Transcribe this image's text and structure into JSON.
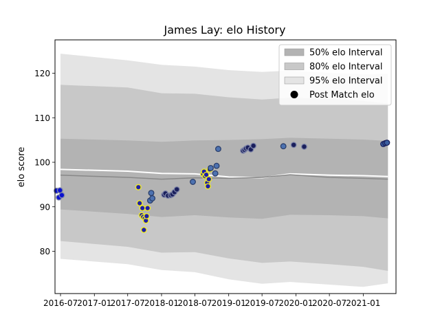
{
  "chart_data": {
    "type": "scatter",
    "title": "James Lay: elo History",
    "xlabel": "",
    "ylabel": "elo score",
    "xlim": [
      "2016-06-01",
      "2021-06-28"
    ],
    "ylim": [
      70.5,
      127.5
    ],
    "x_ticks": [
      "2016-07",
      "2017-01",
      "2017-07",
      "2018-01",
      "2018-07",
      "2019-01",
      "2019-07",
      "2020-01",
      "2020-07",
      "2021-01"
    ],
    "y_ticks": [
      80,
      90,
      100,
      110,
      120
    ],
    "grid": false,
    "legend_position": "top-right",
    "legend": [
      {
        "label": "50% elo Interval",
        "color": "#b3b3b3"
      },
      {
        "label": "80% elo Interval",
        "color": "#c8c8c8"
      },
      {
        "label": "95% elo Interval",
        "color": "#e4e4e4"
      },
      {
        "label": "Post Match elo",
        "color": "#000000"
      }
    ],
    "intervals": {
      "x": [
        "2016-07-01",
        "2017-07-01",
        "2018-01-01",
        "2018-07-01",
        "2019-01-01",
        "2019-07-01",
        "2019-12-01",
        "2020-07-01",
        "2021-01-01",
        "2021-05-15"
      ],
      "mean": [
        97.1,
        96.6,
        96.2,
        96.5,
        96.4,
        96.6,
        97.2,
        96.6,
        96.4,
        96.2
      ],
      "p25": [
        89.4,
        88.4,
        87.7,
        88.1,
        87.6,
        87.3,
        88.2,
        88.1,
        87.9,
        87.4
      ],
      "p75": [
        105.3,
        104.9,
        104.6,
        104.9,
        105.0,
        105.2,
        105.5,
        105.3,
        105.1,
        104.8
      ],
      "p10": [
        82.3,
        81.0,
        79.7,
        79.8,
        78.4,
        77.4,
        77.7,
        77.1,
        76.5,
        75.6
      ],
      "p90": [
        117.4,
        116.8,
        115.5,
        115.4,
        114.6,
        114.1,
        114.5,
        114.3,
        113.8,
        113.2
      ],
      "p2_5": [
        78.3,
        77.1,
        75.8,
        75.3,
        73.7,
        72.7,
        73.1,
        72.5,
        72.0,
        72.8
      ],
      "p97_5": [
        124.4,
        122.9,
        121.9,
        121.5,
        120.7,
        120.3,
        120.6,
        120.1,
        119.8,
        119.9
      ]
    },
    "mean_line_color": "#888888",
    "upper_line": [
      98.4,
      98.0,
      97.5,
      97.4,
      96.7,
      96.5,
      97.4,
      97.1,
      97.0,
      96.8
    ],
    "series": [
      {
        "points": [
          {
            "x": "2016-06-10",
            "y": 93.6,
            "fill": "#0a10d0",
            "edge": "#7d84a8"
          },
          {
            "x": "2016-06-22",
            "y": 92.1,
            "fill": "#0a10d0",
            "edge": "#7d84a8"
          },
          {
            "x": "2016-06-28",
            "y": 93.7,
            "fill": "#0a10d0",
            "edge": "#7d84a8"
          },
          {
            "x": "2016-07-08",
            "y": 92.6,
            "fill": "#0a10d0",
            "edge": "#7d84a8"
          },
          {
            "x": "2017-08-28",
            "y": 94.4,
            "fill": "#1f1fa8",
            "edge": "#f6f11a"
          },
          {
            "x": "2017-09-04",
            "y": 90.8,
            "fill": "#1f1fa8",
            "edge": "#f6f11a"
          },
          {
            "x": "2017-09-15",
            "y": 88.1,
            "fill": "#1f1fa8",
            "edge": "#f6f11a"
          },
          {
            "x": "2017-09-19",
            "y": 89.7,
            "fill": "#1f1fa8",
            "edge": "#f6f11a"
          },
          {
            "x": "2017-09-23",
            "y": 87.7,
            "fill": "#1f1fa8",
            "edge": "#f6f11a"
          },
          {
            "x": "2017-09-27",
            "y": 84.8,
            "fill": "#1f1fa8",
            "edge": "#f6f11a"
          },
          {
            "x": "2017-10-02",
            "y": 87.4,
            "fill": "#1f1fa8",
            "edge": "#f6f11a"
          },
          {
            "x": "2017-10-08",
            "y": 86.9,
            "fill": "#1f1fa8",
            "edge": "#f6f11a"
          },
          {
            "x": "2017-10-12",
            "y": 87.9,
            "fill": "#1f1fa8",
            "edge": "#f6f11a"
          },
          {
            "x": "2017-10-17",
            "y": 89.7,
            "fill": "#1f1fa8",
            "edge": "#f6f11a"
          },
          {
            "x": "2017-10-31",
            "y": 91.4,
            "fill": "#4d72b0",
            "edge": "#2a3e6b"
          },
          {
            "x": "2017-11-06",
            "y": 93.1,
            "fill": "#4d72b0",
            "edge": "#2a3e6b"
          },
          {
            "x": "2017-11-12",
            "y": 91.9,
            "fill": "#4d72b0",
            "edge": "#2a3e6b"
          },
          {
            "x": "2018-01-15",
            "y": 92.7,
            "fill": "#1a1f5c",
            "edge": "#7d84a8"
          },
          {
            "x": "2018-01-22",
            "y": 93.0,
            "fill": "#1a1f5c",
            "edge": "#7d84a8"
          },
          {
            "x": "2018-02-05",
            "y": 92.5,
            "fill": "#1a1f5c",
            "edge": "#7d84a8"
          },
          {
            "x": "2018-02-20",
            "y": 92.6,
            "fill": "#1a1f5c",
            "edge": "#7d84a8"
          },
          {
            "x": "2018-03-01",
            "y": 92.8,
            "fill": "#1a1f5c",
            "edge": "#7d84a8"
          },
          {
            "x": "2018-03-12",
            "y": 93.3,
            "fill": "#1a1f5c",
            "edge": "#7d84a8"
          },
          {
            "x": "2018-03-25",
            "y": 93.9,
            "fill": "#1a1f5c",
            "edge": "#7d84a8"
          },
          {
            "x": "2018-06-20",
            "y": 95.6,
            "fill": "#4d72b0",
            "edge": "#2a3e6b"
          },
          {
            "x": "2018-08-15",
            "y": 97.4,
            "fill": "#1f1fa8",
            "edge": "#f6f11a"
          },
          {
            "x": "2018-08-20",
            "y": 97.9,
            "fill": "#1f1fa8",
            "edge": "#f6f11a"
          },
          {
            "x": "2018-08-25",
            "y": 96.9,
            "fill": "#1f1fa8",
            "edge": "#f6f11a"
          },
          {
            "x": "2018-09-01",
            "y": 97.2,
            "fill": "#1f1fa8",
            "edge": "#f6f11a"
          },
          {
            "x": "2018-09-06",
            "y": 95.4,
            "fill": "#1f1fa8",
            "edge": "#f6f11a"
          },
          {
            "x": "2018-09-10",
            "y": 94.6,
            "fill": "#1f1fa8",
            "edge": "#f6f11a"
          },
          {
            "x": "2018-09-15",
            "y": 96.2,
            "fill": "#1f1fa8",
            "edge": "#f6f11a"
          },
          {
            "x": "2018-09-20",
            "y": 98.4,
            "fill": "#1f1fa8",
            "edge": "#f6f11a"
          },
          {
            "x": "2018-09-25",
            "y": 98.7,
            "fill": "#4d72b0",
            "edge": "#2a3e6b"
          },
          {
            "x": "2018-10-20",
            "y": 97.5,
            "fill": "#4d72b0",
            "edge": "#2a3e6b"
          },
          {
            "x": "2018-10-27",
            "y": 99.2,
            "fill": "#4d72b0",
            "edge": "#2a3e6b"
          },
          {
            "x": "2018-11-05",
            "y": 103.0,
            "fill": "#4d72b0",
            "edge": "#2a3e6b"
          },
          {
            "x": "2019-03-20",
            "y": 102.6,
            "fill": "#1a1f5c",
            "edge": "#7d84a8"
          },
          {
            "x": "2019-03-28",
            "y": 102.8,
            "fill": "#1a1f5c",
            "edge": "#7d84a8"
          },
          {
            "x": "2019-04-05",
            "y": 103.1,
            "fill": "#1a1f5c",
            "edge": "#7d84a8"
          },
          {
            "x": "2019-04-15",
            "y": 103.3,
            "fill": "#1a1f5c",
            "edge": "#7d84a8"
          },
          {
            "x": "2019-05-01",
            "y": 102.9,
            "fill": "#1a1f5c",
            "edge": "#7d84a8"
          },
          {
            "x": "2019-05-15",
            "y": 103.7,
            "fill": "#1a1f5c",
            "edge": "#7d84a8"
          },
          {
            "x": "2019-10-25",
            "y": 103.6,
            "fill": "#4d72b0",
            "edge": "#2a3e6b"
          },
          {
            "x": "2019-12-20",
            "y": 103.9,
            "fill": "#1a1f5c",
            "edge": "#7d84a8"
          },
          {
            "x": "2020-02-15",
            "y": 103.5,
            "fill": "#1a1f5c",
            "edge": "#7d84a8"
          },
          {
            "x": "2021-04-20",
            "y": 104.1,
            "fill": "#3b5fa0",
            "edge": "#1a1f5c"
          },
          {
            "x": "2021-05-01",
            "y": 104.3,
            "fill": "#3b5fa0",
            "edge": "#1a1f5c"
          },
          {
            "x": "2021-05-10",
            "y": 104.4,
            "fill": "#3b5fa0",
            "edge": "#1a1f5c"
          }
        ]
      }
    ]
  }
}
